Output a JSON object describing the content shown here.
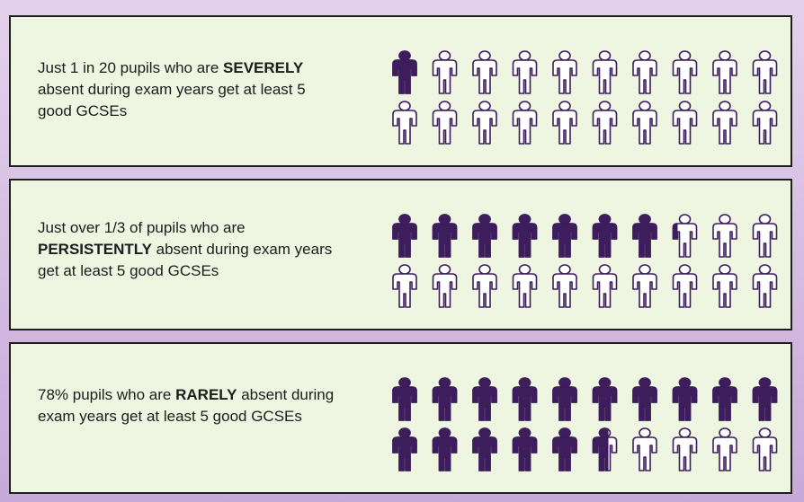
{
  "chart_data": {
    "type": "pictogram",
    "icons_per_panel": 20,
    "icon_unit": "pupils",
    "colors": {
      "filled": "#3d1d5c",
      "empty": "#ffffff",
      "panel": "#eef5e1"
    },
    "panels": [
      {
        "text": {
          "pre": "Just 1 in 20 pupils who are",
          "emph": "SEVERELY",
          "post": "absent during exam years get at least 5 good GCSEs"
        },
        "filled_icons": 1,
        "value_percent": 5
      },
      {
        "text": {
          "pre": "Just over 1/3 of pupils who are",
          "emph": "PERSISTENTLY",
          "post": "absent during exam years get at least 5 good GCSEs"
        },
        "filled_icons": 7.3,
        "value_percent": 36
      },
      {
        "text": {
          "pre": "78% pupils who are",
          "emph": "RARELY",
          "post": "absent during exam years get at least 5 good GCSEs"
        },
        "filled_icons": 15.6,
        "value_percent": 78
      }
    ]
  }
}
